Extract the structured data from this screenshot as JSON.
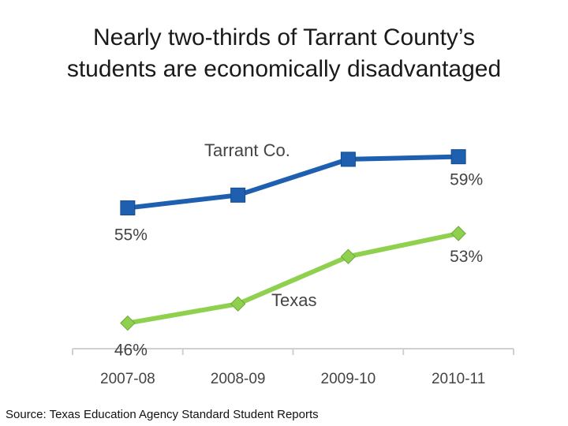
{
  "title_lines": [
    "Nearly two-thirds of Tarrant County’s",
    "students are economically disadvantaged"
  ],
  "source": "Source: Texas Education Agency Standard Student Reports",
  "chart_data": {
    "type": "line",
    "categories": [
      "2007-08",
      "2008-09",
      "2009-10",
      "2010-11"
    ],
    "series": [
      {
        "name": "Tarrant Co.",
        "values": [
          55,
          56,
          58.8,
          59
        ],
        "color": "#1f5fb0",
        "marker": "square",
        "labels": {
          "0": "55%",
          "3": "59%"
        }
      },
      {
        "name": "Texas",
        "values": [
          46,
          47.5,
          51.2,
          53
        ],
        "color": "#8fd14f",
        "marker": "diamond",
        "labels": {
          "0": "46%",
          "3": "53%"
        }
      }
    ],
    "ylim": [
      44,
      62
    ],
    "grid": false,
    "legend": "inline labels"
  }
}
